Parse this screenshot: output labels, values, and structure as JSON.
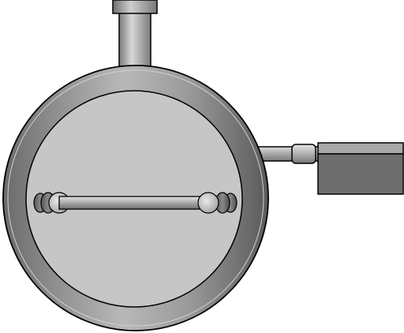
{
  "diagram": {
    "subject": "valve-assembly-side-view",
    "colors": {
      "background": "#ffffff",
      "outline": "#000000",
      "housing_light": "#c8c8c8",
      "housing_mid": "#9a9a9a",
      "housing_dark": "#555555",
      "face": "#c6c6c6",
      "face_edge": "#8a8a8a",
      "stem": "#b5b5b5",
      "actuator_top": "#a8a8a8",
      "actuator_front": "#6e6e6e"
    },
    "parts": [
      {
        "id": "top-cap",
        "shape": "rect"
      },
      {
        "id": "top-stem",
        "shape": "cylinder"
      },
      {
        "id": "outer-housing-ring",
        "shape": "circle"
      },
      {
        "id": "inner-face",
        "shape": "circle"
      },
      {
        "id": "horizontal-shaft",
        "shape": "rod"
      },
      {
        "id": "left-shaft-end",
        "shape": "end-knobs"
      },
      {
        "id": "right-shaft-end",
        "shape": "end-knobs"
      },
      {
        "id": "side-pipe",
        "shape": "pipe"
      },
      {
        "id": "pipe-coupling",
        "shape": "cylinder"
      },
      {
        "id": "actuator-box",
        "shape": "box"
      }
    ]
  }
}
